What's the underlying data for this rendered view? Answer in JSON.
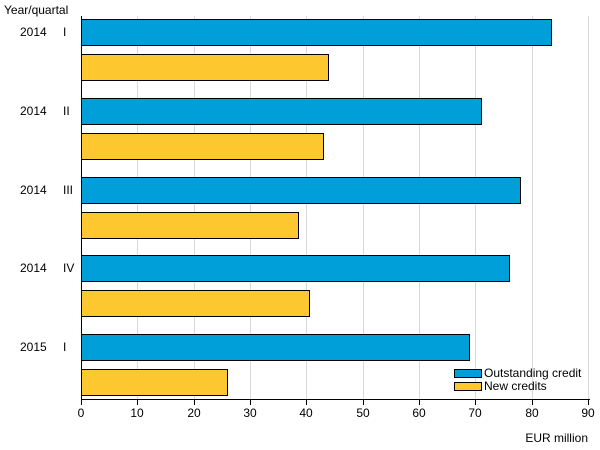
{
  "chart_data": {
    "type": "bar",
    "orientation": "horizontal",
    "title": "",
    "ylabel": "Year/quartal",
    "xlabel": "EUR million",
    "xlim": [
      0,
      90
    ],
    "xticks": [
      "0",
      "10",
      "20",
      "30",
      "40",
      "50",
      "60",
      "70",
      "80",
      "90"
    ],
    "grid": true,
    "legend_position": "bottom-right",
    "categories": [
      {
        "year": "2014",
        "quarter": "I"
      },
      {
        "year": "2014",
        "quarter": "II"
      },
      {
        "year": "2014",
        "quarter": "III"
      },
      {
        "year": "2014",
        "quarter": "IV"
      },
      {
        "year": "2015",
        "quarter": "I"
      }
    ],
    "series": [
      {
        "name": "Outstanding credit",
        "color": "#009fda",
        "values": [
          83.4,
          71.0,
          77.9,
          75.9,
          68.9
        ]
      },
      {
        "name": "New credits",
        "color": "#fdc82f",
        "values": [
          43.9,
          43.0,
          38.6,
          40.4,
          26.0
        ]
      }
    ]
  }
}
